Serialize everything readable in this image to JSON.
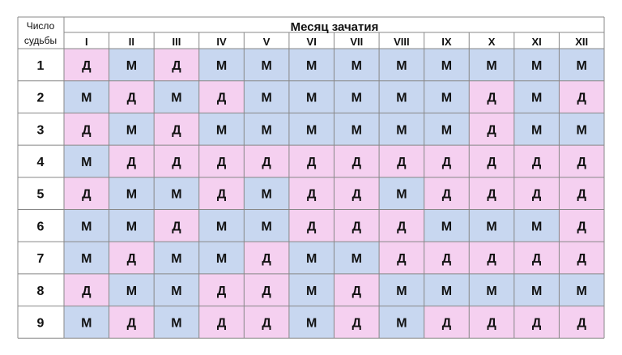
{
  "table": {
    "fate_header_line1": "Число",
    "fate_header_line2": "судьбы",
    "month_header": "Месяц зачатия",
    "months": [
      "I",
      "II",
      "III",
      "IV",
      "V",
      "VI",
      "VII",
      "VIII",
      "IX",
      "X",
      "XI",
      "XII"
    ],
    "rows": [
      {
        "num": "1",
        "cells": [
          "Д",
          "М",
          "Д",
          "М",
          "М",
          "М",
          "М",
          "М",
          "М",
          "М",
          "М",
          "М"
        ]
      },
      {
        "num": "2",
        "cells": [
          "М",
          "Д",
          "М",
          "Д",
          "М",
          "М",
          "М",
          "М",
          "М",
          "Д",
          "М",
          "Д"
        ]
      },
      {
        "num": "3",
        "cells": [
          "Д",
          "М",
          "Д",
          "М",
          "М",
          "М",
          "М",
          "М",
          "М",
          "Д",
          "М",
          "М"
        ]
      },
      {
        "num": "4",
        "cells": [
          "М",
          "Д",
          "Д",
          "Д",
          "Д",
          "Д",
          "Д",
          "Д",
          "Д",
          "Д",
          "Д",
          "Д"
        ]
      },
      {
        "num": "5",
        "cells": [
          "Д",
          "М",
          "М",
          "Д",
          "М",
          "Д",
          "Д",
          "М",
          "Д",
          "Д",
          "Д",
          "Д"
        ]
      },
      {
        "num": "6",
        "cells": [
          "М",
          "М",
          "Д",
          "М",
          "М",
          "Д",
          "Д",
          "Д",
          "М",
          "М",
          "М",
          "Д"
        ]
      },
      {
        "num": "7",
        "cells": [
          "М",
          "Д",
          "М",
          "М",
          "Д",
          "М",
          "М",
          "Д",
          "Д",
          "Д",
          "Д",
          "Д"
        ]
      },
      {
        "num": "8",
        "cells": [
          "Д",
          "М",
          "М",
          "Д",
          "Д",
          "М",
          "Д",
          "М",
          "М",
          "М",
          "М",
          "М"
        ]
      },
      {
        "num": "9",
        "cells": [
          "М",
          "Д",
          "М",
          "Д",
          "Д",
          "М",
          "Д",
          "М",
          "Д",
          "Д",
          "Д",
          "Д"
        ]
      }
    ],
    "colors": {
      "girl_fill": "#f5d0f0",
      "boy_fill": "#c8d7f0",
      "grid_line": "#888888",
      "text": "#111111"
    }
  }
}
